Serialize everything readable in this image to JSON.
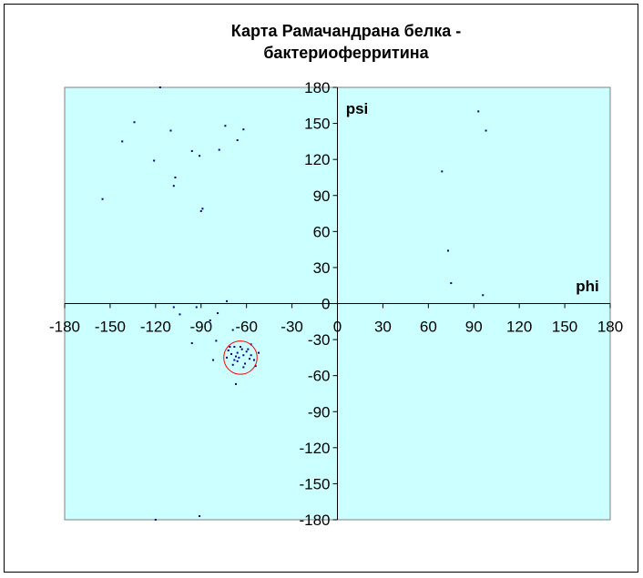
{
  "chart_data": {
    "type": "scatter",
    "title_line1": "Карта Рамачандрана белка -",
    "title_line2": "бактериоферритина",
    "xlabel": "phi",
    "ylabel": "psi",
    "xlim": [
      -180,
      180
    ],
    "ylim": [
      -180,
      180
    ],
    "xticks": [
      -180,
      -150,
      -120,
      -90,
      -60,
      -30,
      0,
      30,
      60,
      90,
      120,
      150,
      180
    ],
    "yticks": [
      180,
      150,
      120,
      90,
      60,
      30,
      0,
      -30,
      -60,
      -90,
      -120,
      -150,
      -180
    ],
    "grid": false,
    "background_color": "#ccffff",
    "point_color": "#000080",
    "highlight": {
      "phi": -64,
      "psi": -45,
      "radius": 11,
      "color": "#ff0000"
    },
    "points": [
      [
        -117,
        180
      ],
      [
        -134,
        151
      ],
      [
        -142,
        135
      ],
      [
        -110,
        144
      ],
      [
        -74,
        148
      ],
      [
        -62,
        145
      ],
      [
        -66,
        136
      ],
      [
        -78,
        128
      ],
      [
        -96,
        127
      ],
      [
        -91,
        123
      ],
      [
        -121,
        119
      ],
      [
        -107,
        105
      ],
      [
        -108,
        98
      ],
      [
        -155,
        87
      ],
      [
        -89,
        79
      ],
      [
        -90,
        77
      ],
      [
        -73,
        2
      ],
      [
        -108,
        -3
      ],
      [
        -93,
        -3
      ],
      [
        -104,
        -9
      ],
      [
        -79,
        -8
      ],
      [
        -84,
        -14
      ],
      [
        -69,
        -22
      ],
      [
        -96,
        -33
      ],
      [
        -80,
        -31
      ],
      [
        -68,
        -36
      ],
      [
        -57,
        -34
      ],
      [
        -52,
        -41
      ],
      [
        -54,
        -52
      ],
      [
        -82,
        -47
      ],
      [
        -67,
        -67
      ],
      [
        -60,
        -40
      ],
      [
        -62,
        -43
      ],
      [
        -65,
        -45
      ],
      [
        -66,
        -41
      ],
      [
        -63,
        -38
      ],
      [
        -70,
        -42
      ],
      [
        -68,
        -47
      ],
      [
        -58,
        -46
      ],
      [
        -61,
        -50
      ],
      [
        -72,
        -39
      ],
      [
        -64,
        -36
      ],
      [
        -69,
        -51
      ],
      [
        -57,
        -43
      ],
      [
        -66,
        -48
      ],
      [
        -73,
        -45
      ],
      [
        -59,
        -38
      ],
      [
        -62,
        -53
      ],
      [
        -67,
        -44
      ],
      [
        -55,
        -47
      ],
      [
        -71,
        -36
      ],
      [
        93,
        160
      ],
      [
        98,
        144
      ],
      [
        69,
        110
      ],
      [
        73,
        44
      ],
      [
        75,
        17
      ],
      [
        96,
        7
      ],
      [
        -120,
        -180
      ],
      [
        -91,
        -177
      ]
    ]
  }
}
